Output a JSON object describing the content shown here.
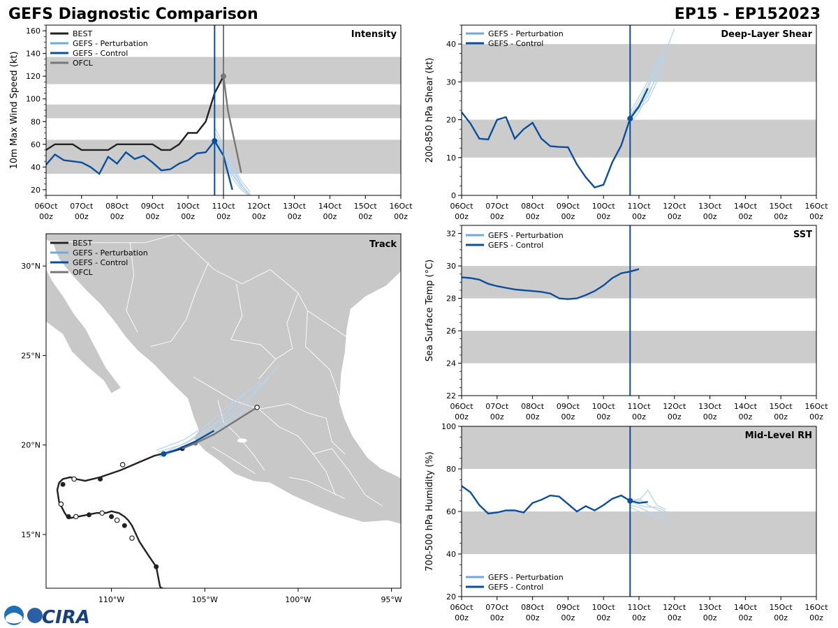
{
  "header": {
    "title": "GEFS Diagnostic Comparison",
    "storm_id": "EP15 - EP152023"
  },
  "colors": {
    "best": "#222222",
    "perturbation": "#6fa8dc",
    "perturbation_light": "#b7d4ea",
    "control": "#0b4f9c",
    "ofcl": "#777777",
    "band": "#cccccc",
    "land": "#c8c8c8",
    "border": "#ffffff"
  },
  "time_axis": {
    "tick_labels": [
      [
        "06Oct",
        "00z"
      ],
      [
        "07Oct",
        "00z"
      ],
      [
        "08Oct",
        "00z"
      ],
      [
        "09Oct",
        "00z"
      ],
      [
        "10Oct",
        "00z"
      ],
      [
        "11Oct",
        "00z"
      ],
      [
        "12Oct",
        "00z"
      ],
      [
        "13Oct",
        "00z"
      ],
      [
        "14Oct",
        "00z"
      ],
      [
        "15Oct",
        "00z"
      ],
      [
        "16Oct",
        "00z"
      ]
    ],
    "xlim_days": [
      0,
      10
    ],
    "init_time_day": 4.75,
    "ofcl_time_day": 5.0
  },
  "chart_data": [
    {
      "id": "intensity",
      "type": "line",
      "title": "Intensity",
      "xlabel": "",
      "ylabel": "10m Max Wind Speed (kt)",
      "ylim": [
        15,
        165
      ],
      "yticks": [
        20,
        40,
        60,
        80,
        100,
        120,
        140,
        160
      ],
      "bands": [
        [
          34,
          64
        ],
        [
          83,
          95
        ],
        [
          113,
          137
        ]
      ],
      "legend": [
        "BEST",
        "GEFS - Perturbation",
        "GEFS - Control",
        "OFCL"
      ],
      "series": [
        {
          "name": "BEST",
          "x": [
            0,
            0.25,
            0.5,
            0.75,
            1.0,
            1.25,
            1.5,
            1.75,
            2.0,
            2.25,
            2.5,
            2.75,
            3.0,
            3.25,
            3.5,
            3.75,
            4.0,
            4.25,
            4.5,
            4.75,
            5.0
          ],
          "y": [
            55,
            60,
            60,
            60,
            55,
            55,
            55,
            55,
            60,
            60,
            60,
            60,
            60,
            55,
            55,
            60,
            70,
            70,
            80,
            105,
            120
          ]
        },
        {
          "name": "GEFS - Control",
          "x": [
            0,
            0.25,
            0.5,
            0.75,
            1.0,
            1.25,
            1.5,
            1.75,
            2.0,
            2.25,
            2.5,
            2.75,
            3.0,
            3.25,
            3.5,
            3.75,
            4.0,
            4.25,
            4.5,
            4.75,
            5.0,
            5.25
          ],
          "y": [
            42,
            51,
            46,
            45,
            44,
            40,
            34,
            49,
            43,
            53,
            47,
            50,
            44,
            37,
            38,
            43,
            46,
            52,
            53,
            63,
            50,
            20
          ]
        },
        {
          "name": "OFCL",
          "x": [
            5.0,
            5.125,
            5.5
          ],
          "y": [
            120,
            90,
            35
          ]
        },
        {
          "name": "GEFS - Perturbation",
          "members": [
            {
              "x": [
                4.75,
                5.0,
                5.25,
                5.5,
                5.75
              ],
              "y": [
                63,
                55,
                40,
                25,
                15
              ]
            },
            {
              "x": [
                4.75,
                5.0,
                5.25,
                5.5,
                5.75
              ],
              "y": [
                70,
                58,
                35,
                22,
                15
              ]
            },
            {
              "x": [
                4.75,
                5.0,
                5.25,
                5.5,
                5.75
              ],
              "y": [
                75,
                60,
                42,
                28,
                18
              ]
            },
            {
              "x": [
                4.75,
                5.0,
                5.25,
                5.5,
                5.75
              ],
              "y": [
                60,
                48,
                30,
                20,
                14
              ]
            },
            {
              "x": [
                4.75,
                5.0,
                5.25,
                5.5,
                5.75
              ],
              "y": [
                66,
                52,
                38,
                24,
                16
              ]
            },
            {
              "x": [
                4.75,
                5.0,
                5.25,
                5.5,
                5.75
              ],
              "y": [
                58,
                45,
                33,
                22,
                15
              ]
            }
          ]
        }
      ],
      "markers": [
        {
          "series": "BEST",
          "x": 5.0,
          "y": 120
        },
        {
          "series": "GEFS - Control",
          "x": 4.75,
          "y": 63
        }
      ]
    },
    {
      "id": "shear",
      "type": "line",
      "title": "Deep-Layer Shear",
      "xlabel": "",
      "ylabel": "200-850 hPa Shear (kt)",
      "ylim": [
        0,
        45
      ],
      "yticks": [
        0,
        10,
        20,
        30,
        40
      ],
      "bands": [
        [
          10,
          20
        ],
        [
          30,
          40
        ]
      ],
      "legend": [
        "GEFS - Perturbation",
        "GEFS - Control"
      ],
      "series": [
        {
          "name": "GEFS - Control",
          "x": [
            0,
            0.25,
            0.5,
            0.75,
            1.0,
            1.25,
            1.5,
            1.75,
            2.0,
            2.25,
            2.5,
            2.75,
            3.0,
            3.25,
            3.5,
            3.75,
            4.0,
            4.25,
            4.5,
            4.75,
            5.0,
            5.25
          ],
          "y": [
            22,
            19,
            15,
            14.8,
            20,
            20.7,
            15,
            17.5,
            19.2,
            15,
            13,
            12.8,
            12.7,
            8.2,
            4.8,
            2.1,
            2.8,
            8.8,
            13.2,
            20.3,
            23.5,
            28.3
          ]
        },
        {
          "name": "GEFS - Perturbation",
          "members": [
            {
              "x": [
                4.75,
                5.0,
                5.25,
                5.5,
                5.75,
                6.0
              ],
              "y": [
                20,
                24,
                28,
                34,
                38,
                44
              ]
            },
            {
              "x": [
                4.75,
                5.0,
                5.25,
                5.5,
                5.75
              ],
              "y": [
                21,
                25,
                29,
                35,
                38
              ]
            },
            {
              "x": [
                4.75,
                5.0,
                5.25,
                5.5,
                5.75
              ],
              "y": [
                19,
                22,
                27,
                31,
                36
              ]
            },
            {
              "x": [
                4.75,
                5.0,
                5.25,
                5.5,
                5.75
              ],
              "y": [
                22,
                26,
                30,
                36,
                39
              ]
            },
            {
              "x": [
                4.75,
                5.0,
                5.25,
                5.5,
                5.75
              ],
              "y": [
                20,
                23,
                25,
                30,
                33
              ]
            },
            {
              "x": [
                4.75,
                5.0,
                5.25,
                5.5,
                5.75
              ],
              "y": [
                21,
                24,
                26,
                32,
                37
              ]
            }
          ]
        }
      ],
      "markers": [
        {
          "series": "GEFS - Control",
          "x": 4.75,
          "y": 20.3
        }
      ]
    },
    {
      "id": "sst",
      "type": "line",
      "title": "SST",
      "xlabel": "",
      "ylabel": "Sea Surface Temp (°C)",
      "ylim": [
        22,
        32.5
      ],
      "yticks": [
        22,
        24,
        26,
        28,
        30,
        32
      ],
      "bands": [
        [
          24,
          26
        ],
        [
          28,
          30
        ]
      ],
      "legend": [
        "GEFS - Perturbation",
        "GEFS - Control"
      ],
      "series": [
        {
          "name": "GEFS - Control",
          "x": [
            0,
            0.25,
            0.5,
            0.75,
            1.0,
            1.25,
            1.5,
            1.75,
            2.0,
            2.25,
            2.5,
            2.75,
            3.0,
            3.25,
            3.5,
            3.75,
            4.0,
            4.25,
            4.5,
            4.75,
            5.0
          ],
          "y": [
            29.3,
            29.25,
            29.15,
            28.9,
            28.75,
            28.65,
            28.55,
            28.5,
            28.45,
            28.4,
            28.3,
            28.0,
            27.95,
            28.0,
            28.2,
            28.45,
            28.8,
            29.25,
            29.55,
            29.65,
            29.8
          ]
        }
      ]
    },
    {
      "id": "rh",
      "type": "line",
      "title": "Mid-Level RH",
      "xlabel": "",
      "ylabel": "700-500 hPa Humidity (%)",
      "ylim": [
        20,
        100
      ],
      "yticks": [
        20,
        40,
        60,
        80,
        100
      ],
      "bands": [
        [
          40,
          60
        ],
        [
          80,
          100
        ]
      ],
      "legend": [
        "GEFS - Perturbation",
        "GEFS - Control"
      ],
      "series": [
        {
          "name": "GEFS - Control",
          "x": [
            0,
            0.25,
            0.5,
            0.75,
            1.0,
            1.25,
            1.5,
            1.75,
            2.0,
            2.25,
            2.5,
            2.75,
            3.0,
            3.25,
            3.5,
            3.75,
            4.0,
            4.25,
            4.5,
            4.75,
            5.0,
            5.25
          ],
          "y": [
            72,
            69,
            63,
            59,
            59.5,
            60.5,
            60.5,
            59.5,
            64,
            65.5,
            67.5,
            67,
            63.5,
            60,
            62.5,
            60.5,
            63,
            66,
            67.5,
            65,
            64,
            64.5
          ]
        },
        {
          "name": "GEFS - Perturbation",
          "members": [
            {
              "x": [
                4.75,
                5.0,
                5.25,
                5.5,
                5.75,
                6.0
              ],
              "y": [
                63,
                62,
                60,
                58,
                57,
                54
              ]
            },
            {
              "x": [
                4.75,
                5.0,
                5.25,
                5.5,
                5.75
              ],
              "y": [
                66,
                65,
                70,
                63,
                61
              ]
            },
            {
              "x": [
                4.75,
                5.0,
                5.25,
                5.5,
                5.75
              ],
              "y": [
                62,
                60,
                59,
                58,
                56
              ]
            },
            {
              "x": [
                4.75,
                5.0,
                5.25,
                5.5,
                5.75
              ],
              "y": [
                64,
                66,
                63,
                61,
                59
              ]
            },
            {
              "x": [
                4.75,
                5.0,
                5.25,
                5.5,
                5.75
              ],
              "y": [
                65,
                63,
                62,
                62,
                60
              ]
            }
          ]
        }
      ],
      "markers": [
        {
          "series": "GEFS - Control",
          "x": 4.75,
          "y": 65
        }
      ]
    },
    {
      "id": "track",
      "type": "scatter",
      "title": "Track",
      "xlabel": "",
      "ylabel": "",
      "xlim_lon": [
        -113.5,
        -94.5
      ],
      "ylim_lat": [
        12,
        31.8
      ],
      "xticks": [
        -110,
        -105,
        -100,
        -95
      ],
      "xtick_labels": [
        "110°W",
        "105°W",
        "100°W",
        "95°W"
      ],
      "yticks": [
        15,
        20,
        25,
        30
      ],
      "ytick_labels": [
        "15°N",
        "20°N",
        "25°N",
        "30°N"
      ],
      "legend": [
        "BEST",
        "GEFS - Perturbation",
        "GEFS - Control",
        "OFCL"
      ],
      "best_track": {
        "lon": [
          -107.2,
          -107.4,
          -107.6,
          -108.0,
          -108.5,
          -108.9,
          -109.1,
          -109.3,
          -109.6,
          -110.0,
          -110.3,
          -110.8,
          -111.3,
          -111.8,
          -112.3,
          -112.5,
          -112.8,
          -112.9,
          -112.8,
          -112.6,
          -112.2,
          -111.9,
          -111.4,
          -110.6,
          -109.5,
          -108.6,
          -107.7,
          -106.9,
          -106.2
        ],
        "lat": [
          11.8,
          12.1,
          13.2,
          13.8,
          14.6,
          15.5,
          15.8,
          16.0,
          16.2,
          16.3,
          16.2,
          16.2,
          16.1,
          16.0,
          15.9,
          16.2,
          16.8,
          17.5,
          17.9,
          18.1,
          18.2,
          18.1,
          18.0,
          18.2,
          18.6,
          19.0,
          19.4,
          19.6,
          19.8
        ],
        "filled_points": [
          [
            -107.6,
            13.2
          ],
          [
            -109.3,
            15.5
          ],
          [
            -110.0,
            16.0
          ],
          [
            -111.2,
            16.1
          ],
          [
            -112.3,
            16.0
          ],
          [
            -112.6,
            17.8
          ],
          [
            -110.6,
            18.1
          ],
          [
            -106.2,
            19.8
          ]
        ],
        "open_points": [
          [
            -107.3,
            11.9
          ],
          [
            -108.9,
            14.8
          ],
          [
            -109.7,
            15.8
          ],
          [
            -110.5,
            16.2
          ],
          [
            -111.9,
            16.0
          ],
          [
            -112.7,
            16.7
          ],
          [
            -112.0,
            18.1
          ],
          [
            -109.4,
            18.9
          ]
        ]
      },
      "ofcl_track": {
        "lon": [
          -106.2,
          -105.5,
          -104.5,
          -102.2
        ],
        "lat": [
          19.8,
          20.1,
          20.6,
          22.1
        ],
        "open_points": [
          [
            -102.2,
            22.1
          ]
        ],
        "filled_points": [
          [
            -105.5,
            20.1
          ]
        ]
      },
      "control_track": {
        "lon": [
          -107.2,
          -106.5,
          -105.5,
          -104.5
        ],
        "lat": [
          19.5,
          19.75,
          20.2,
          20.8
        ],
        "filled_points": [
          [
            -107.2,
            19.5
          ]
        ]
      },
      "perturbation_tracks": [
        {
          "lon": [
            -107.5,
            -106.0,
            -104.5,
            -103.0,
            -101.0
          ],
          "lat": [
            19.5,
            19.9,
            20.8,
            22.0,
            24.5
          ]
        },
        {
          "lon": [
            -107.5,
            -106.0,
            -104.5,
            -103.0,
            -101.5
          ],
          "lat": [
            19.6,
            20.1,
            21.0,
            22.3,
            23.9
          ]
        },
        {
          "lon": [
            -107.4,
            -105.8,
            -104.2,
            -102.5
          ],
          "lat": [
            19.4,
            20.0,
            20.9,
            22.2
          ]
        },
        {
          "lon": [
            -107.6,
            -106.1,
            -104.8,
            -103.4,
            -102.0
          ],
          "lat": [
            19.7,
            20.3,
            21.2,
            22.5,
            23.5
          ]
        },
        {
          "lon": [
            -107.3,
            -105.9,
            -104.3,
            -102.8
          ],
          "lat": [
            19.5,
            20.2,
            21.3,
            22.9
          ]
        },
        {
          "lon": [
            -107.5,
            -106.2,
            -105.0,
            -103.8
          ],
          "lat": [
            19.3,
            19.8,
            20.5,
            21.3
          ]
        }
      ]
    }
  ],
  "logo": {
    "label": "CIRA"
  }
}
